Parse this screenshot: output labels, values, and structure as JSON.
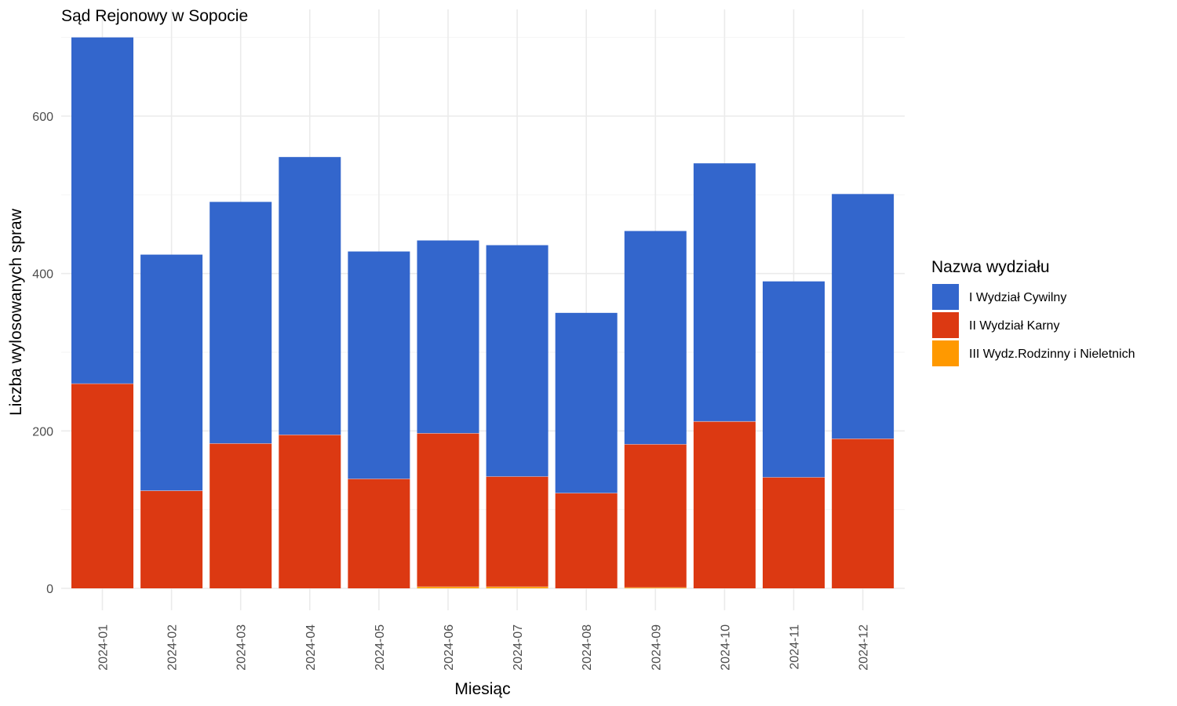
{
  "chart_data": {
    "type": "bar",
    "stacked": true,
    "title": "Sąd Rejonowy w Sopocie",
    "xlabel": "Miesiąc",
    "ylabel": "Liczba wylosowanych spraw",
    "categories": [
      "2024-01",
      "2024-02",
      "2024-03",
      "2024-04",
      "2024-05",
      "2024-06",
      "2024-07",
      "2024-08",
      "2024-09",
      "2024-10",
      "2024-11",
      "2024-12"
    ],
    "ylim": [
      0,
      700
    ],
    "yticks": [
      0,
      200,
      400,
      600
    ],
    "grid": true,
    "legend_position": "right",
    "legend_title": "Nazwa wydziału",
    "series": [
      {
        "name": "III Wydz.Rodzinny i Nieletnich",
        "color": "#FF9900",
        "values": [
          0,
          0,
          0,
          0,
          0,
          2,
          2,
          0,
          1,
          0,
          0,
          0
        ]
      },
      {
        "name": "II Wydział Karny",
        "color": "#DC3912",
        "values": [
          260,
          124,
          184,
          195,
          139,
          195,
          140,
          121,
          182,
          212,
          141,
          190
        ]
      },
      {
        "name": "I Wydział Cywilny",
        "color": "#3366CC",
        "values": [
          440,
          300,
          307,
          353,
          289,
          245,
          294,
          229,
          271,
          328,
          249,
          311
        ]
      }
    ],
    "legend_order": [
      "I Wydział Cywilny",
      "II Wydział Karny",
      "III Wydz.Rodzinny i Nieletnich"
    ]
  }
}
